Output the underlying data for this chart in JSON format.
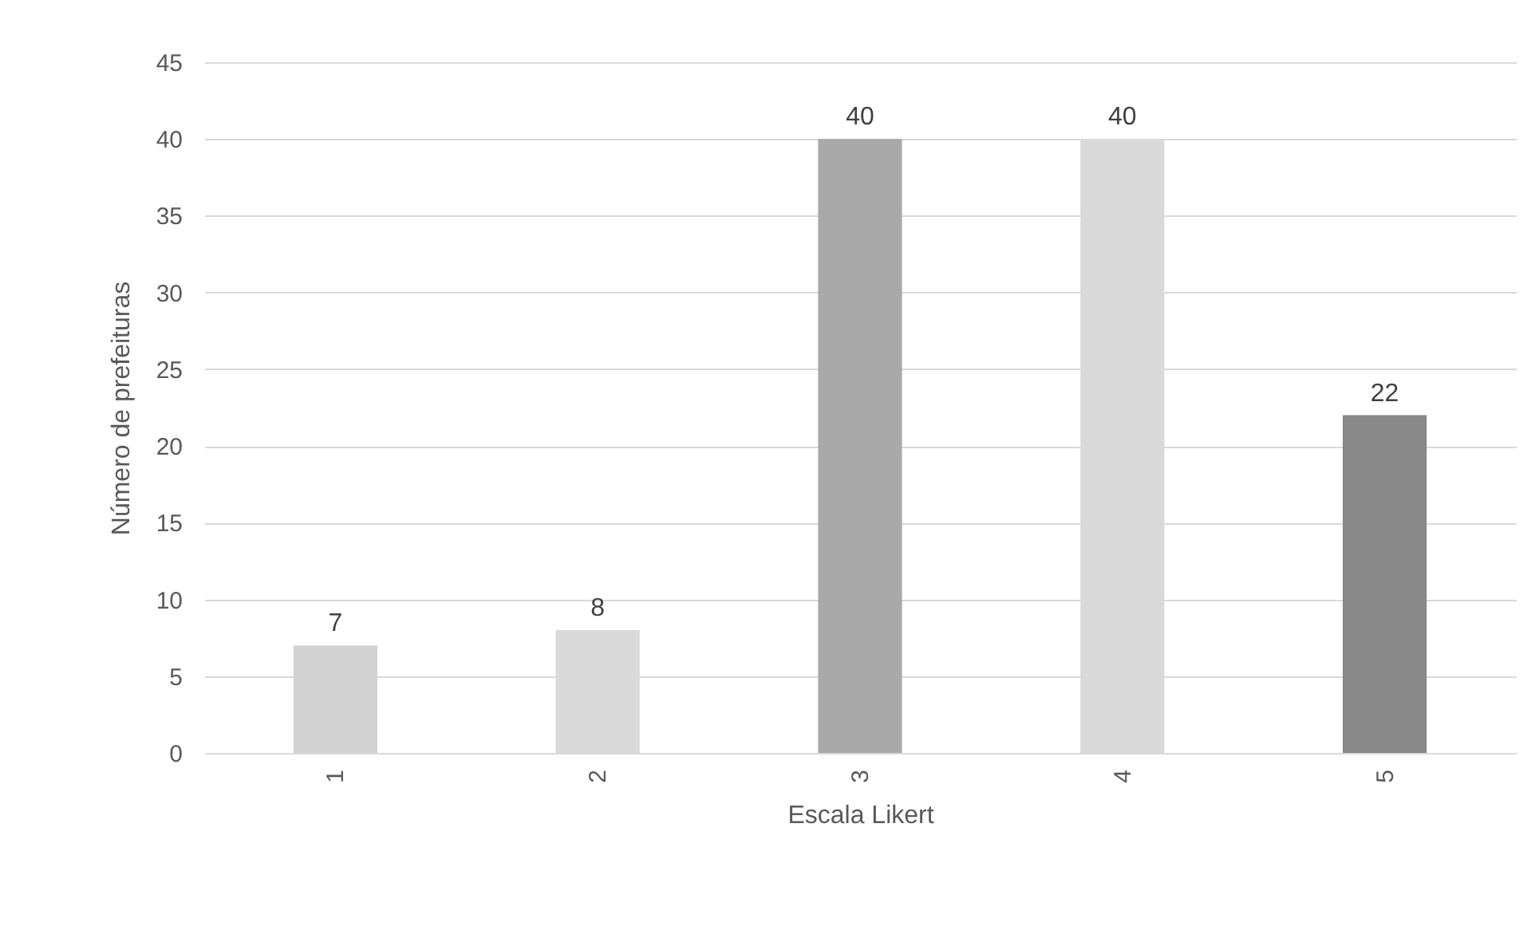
{
  "chart_data": {
    "type": "bar",
    "xlabel": "Escala Likert",
    "ylabel": "Número de prefeituras",
    "categories": [
      "1",
      "2",
      "3",
      "4",
      "5"
    ],
    "values": [
      7,
      8,
      40,
      40,
      22
    ],
    "colors": [
      "#d3d3d3",
      "#d9d9d9",
      "#a9a9a9",
      "#d9d9d9",
      "#888888"
    ],
    "ylim": [
      0,
      45
    ],
    "yticks": [
      0,
      5,
      10,
      15,
      20,
      25,
      30,
      35,
      40,
      45
    ],
    "grid": "y",
    "data_labels": true
  }
}
